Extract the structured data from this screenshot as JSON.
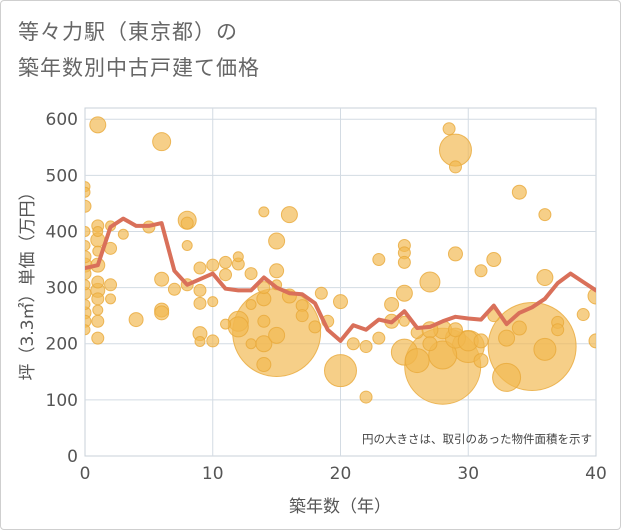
{
  "title_lines": [
    "等々力駅（東京都）の",
    "築年数別中古戸建て価格"
  ],
  "chart_data": {
    "type": "scatter",
    "xlabel": "築年数（年）",
    "ylabel": "坪（3.3㎡）単価（万円）",
    "xlim": [
      0,
      40
    ],
    "ylim": [
      0,
      620
    ],
    "x_ticks": [
      "0",
      "10",
      "20",
      "30",
      "40"
    ],
    "y_ticks": [
      "0",
      "100",
      "200",
      "300",
      "400",
      "500",
      "600"
    ],
    "annotation": "円の大きさは、取引のあった物件面積を示す",
    "grid": true,
    "colors": {
      "bubble": "#f2b84f",
      "bubble_outline": "#e8a93a",
      "line": "#d9705a",
      "grid": "#d3dbe3",
      "plot_bg": "#ffffff"
    },
    "bubbles": [
      {
        "x": 0,
        "y": 480,
        "r": 5
      },
      {
        "x": 0,
        "y": 470,
        "r": 5
      },
      {
        "x": 0,
        "y": 445,
        "r": 6
      },
      {
        "x": 0,
        "y": 400,
        "r": 5
      },
      {
        "x": 0,
        "y": 375,
        "r": 5
      },
      {
        "x": 0,
        "y": 355,
        "r": 6
      },
      {
        "x": 0,
        "y": 340,
        "r": 7
      },
      {
        "x": 0,
        "y": 325,
        "r": 6
      },
      {
        "x": 0,
        "y": 305,
        "r": 5
      },
      {
        "x": 0,
        "y": 290,
        "r": 6
      },
      {
        "x": 0,
        "y": 270,
        "r": 5
      },
      {
        "x": 0,
        "y": 255,
        "r": 6
      },
      {
        "x": 0,
        "y": 240,
        "r": 6
      },
      {
        "x": 0,
        "y": 225,
        "r": 5
      },
      {
        "x": 1,
        "y": 590,
        "r": 8
      },
      {
        "x": 1,
        "y": 410,
        "r": 6
      },
      {
        "x": 1,
        "y": 400,
        "r": 5
      },
      {
        "x": 1,
        "y": 385,
        "r": 7
      },
      {
        "x": 1,
        "y": 365,
        "r": 5
      },
      {
        "x": 1,
        "y": 340,
        "r": 7
      },
      {
        "x": 1,
        "y": 310,
        "r": 6
      },
      {
        "x": 1,
        "y": 295,
        "r": 7
      },
      {
        "x": 1,
        "y": 280,
        "r": 6
      },
      {
        "x": 1,
        "y": 260,
        "r": 5
      },
      {
        "x": 1,
        "y": 240,
        "r": 6
      },
      {
        "x": 1,
        "y": 210,
        "r": 6
      },
      {
        "x": 2,
        "y": 410,
        "r": 5
      },
      {
        "x": 2,
        "y": 370,
        "r": 6
      },
      {
        "x": 2,
        "y": 305,
        "r": 6
      },
      {
        "x": 2,
        "y": 280,
        "r": 5
      },
      {
        "x": 3,
        "y": 395,
        "r": 5
      },
      {
        "x": 4,
        "y": 243,
        "r": 7
      },
      {
        "x": 5,
        "y": 408,
        "r": 6
      },
      {
        "x": 6,
        "y": 560,
        "r": 9
      },
      {
        "x": 6,
        "y": 315,
        "r": 7
      },
      {
        "x": 6,
        "y": 260,
        "r": 7
      },
      {
        "x": 6,
        "y": 255,
        "r": 7
      },
      {
        "x": 7,
        "y": 297,
        "r": 6
      },
      {
        "x": 8,
        "y": 420,
        "r": 9
      },
      {
        "x": 8,
        "y": 415,
        "r": 6
      },
      {
        "x": 8,
        "y": 375,
        "r": 5
      },
      {
        "x": 8,
        "y": 305,
        "r": 6
      },
      {
        "x": 9,
        "y": 335,
        "r": 6
      },
      {
        "x": 9,
        "y": 295,
        "r": 6
      },
      {
        "x": 9,
        "y": 272,
        "r": 6
      },
      {
        "x": 9,
        "y": 218,
        "r": 7
      },
      {
        "x": 9,
        "y": 204,
        "r": 5
      },
      {
        "x": 10,
        "y": 340,
        "r": 6
      },
      {
        "x": 10,
        "y": 275,
        "r": 5
      },
      {
        "x": 10,
        "y": 205,
        "r": 6
      },
      {
        "x": 11,
        "y": 345,
        "r": 6
      },
      {
        "x": 11,
        "y": 323,
        "r": 6
      },
      {
        "x": 11,
        "y": 235,
        "r": 5
      },
      {
        "x": 12,
        "y": 355,
        "r": 5
      },
      {
        "x": 12,
        "y": 342,
        "r": 6
      },
      {
        "x": 12,
        "y": 240,
        "r": 10
      },
      {
        "x": 12,
        "y": 230,
        "r": 10
      },
      {
        "x": 13,
        "y": 325,
        "r": 6
      },
      {
        "x": 13,
        "y": 270,
        "r": 5
      },
      {
        "x": 13,
        "y": 200,
        "r": 5
      },
      {
        "x": 14,
        "y": 435,
        "r": 5
      },
      {
        "x": 14,
        "y": 300,
        "r": 6
      },
      {
        "x": 14,
        "y": 280,
        "r": 7
      },
      {
        "x": 14,
        "y": 240,
        "r": 6
      },
      {
        "x": 14,
        "y": 200,
        "r": 8
      },
      {
        "x": 14,
        "y": 163,
        "r": 7
      },
      {
        "x": 15,
        "y": 383,
        "r": 8
      },
      {
        "x": 15,
        "y": 330,
        "r": 7
      },
      {
        "x": 15,
        "y": 305,
        "r": 5
      },
      {
        "x": 15,
        "y": 220,
        "r": 44
      },
      {
        "x": 15,
        "y": 215,
        "r": 8
      },
      {
        "x": 16,
        "y": 430,
        "r": 8
      },
      {
        "x": 16,
        "y": 285,
        "r": 7
      },
      {
        "x": 17,
        "y": 268,
        "r": 6
      },
      {
        "x": 17,
        "y": 250,
        "r": 6
      },
      {
        "x": 18,
        "y": 230,
        "r": 6
      },
      {
        "x": 18.5,
        "y": 290,
        "r": 6
      },
      {
        "x": 19,
        "y": 240,
        "r": 6
      },
      {
        "x": 20,
        "y": 275,
        "r": 7
      },
      {
        "x": 20,
        "y": 152,
        "r": 16
      },
      {
        "x": 21,
        "y": 200,
        "r": 6
      },
      {
        "x": 22,
        "y": 105,
        "r": 6
      },
      {
        "x": 22,
        "y": 195,
        "r": 6
      },
      {
        "x": 23,
        "y": 350,
        "r": 6
      },
      {
        "x": 23,
        "y": 210,
        "r": 6
      },
      {
        "x": 24,
        "y": 270,
        "r": 7
      },
      {
        "x": 24,
        "y": 240,
        "r": 7
      },
      {
        "x": 25,
        "y": 375,
        "r": 6
      },
      {
        "x": 25,
        "y": 362,
        "r": 6
      },
      {
        "x": 25,
        "y": 345,
        "r": 6
      },
      {
        "x": 25,
        "y": 290,
        "r": 8
      },
      {
        "x": 25,
        "y": 240,
        "r": 5
      },
      {
        "x": 25,
        "y": 185,
        "r": 13
      },
      {
        "x": 26,
        "y": 220,
        "r": 6
      },
      {
        "x": 26,
        "y": 170,
        "r": 12
      },
      {
        "x": 27,
        "y": 310,
        "r": 10
      },
      {
        "x": 27,
        "y": 225,
        "r": 8
      },
      {
        "x": 27,
        "y": 200,
        "r": 7
      },
      {
        "x": 28,
        "y": 160,
        "r": 38
      },
      {
        "x": 28,
        "y": 180,
        "r": 14
      },
      {
        "x": 28,
        "y": 225,
        "r": 9
      },
      {
        "x": 28.5,
        "y": 583,
        "r": 6
      },
      {
        "x": 29,
        "y": 545,
        "r": 16
      },
      {
        "x": 29,
        "y": 515,
        "r": 6
      },
      {
        "x": 29,
        "y": 360,
        "r": 7
      },
      {
        "x": 29,
        "y": 225,
        "r": 7
      },
      {
        "x": 29,
        "y": 210,
        "r": 10
      },
      {
        "x": 30,
        "y": 205,
        "r": 10
      },
      {
        "x": 30,
        "y": 195,
        "r": 16
      },
      {
        "x": 31,
        "y": 330,
        "r": 6
      },
      {
        "x": 31,
        "y": 205,
        "r": 7
      },
      {
        "x": 31,
        "y": 170,
        "r": 7
      },
      {
        "x": 32,
        "y": 350,
        "r": 7
      },
      {
        "x": 32,
        "y": 250,
        "r": 6
      },
      {
        "x": 33,
        "y": 210,
        "r": 8
      },
      {
        "x": 33,
        "y": 140,
        "r": 14
      },
      {
        "x": 34,
        "y": 470,
        "r": 7
      },
      {
        "x": 34,
        "y": 228,
        "r": 7
      },
      {
        "x": 35,
        "y": 195,
        "r": 44
      },
      {
        "x": 36,
        "y": 430,
        "r": 6
      },
      {
        "x": 36,
        "y": 318,
        "r": 8
      },
      {
        "x": 36,
        "y": 190,
        "r": 11
      },
      {
        "x": 37,
        "y": 238,
        "r": 6
      },
      {
        "x": 37,
        "y": 225,
        "r": 6
      },
      {
        "x": 39,
        "y": 252,
        "r": 6
      },
      {
        "x": 40,
        "y": 285,
        "r": 8
      },
      {
        "x": 40,
        "y": 205,
        "r": 7
      }
    ],
    "average_line": {
      "x": [
        0,
        1,
        2,
        3,
        4,
        5,
        6,
        7,
        8,
        9,
        10,
        11,
        12,
        13,
        14,
        15,
        16,
        17,
        18,
        19,
        20,
        21,
        22,
        23,
        24,
        25,
        26,
        27,
        28,
        29,
        30,
        31,
        32,
        33,
        34,
        35,
        36,
        37,
        38,
        39,
        40
      ],
      "y": [
        335,
        340,
        408,
        423,
        410,
        410,
        415,
        330,
        305,
        315,
        325,
        298,
        295,
        295,
        318,
        300,
        290,
        288,
        272,
        225,
        205,
        233,
        225,
        243,
        238,
        258,
        228,
        230,
        240,
        248,
        245,
        243,
        268,
        235,
        255,
        265,
        280,
        308,
        325,
        310,
        295
      ]
    }
  }
}
